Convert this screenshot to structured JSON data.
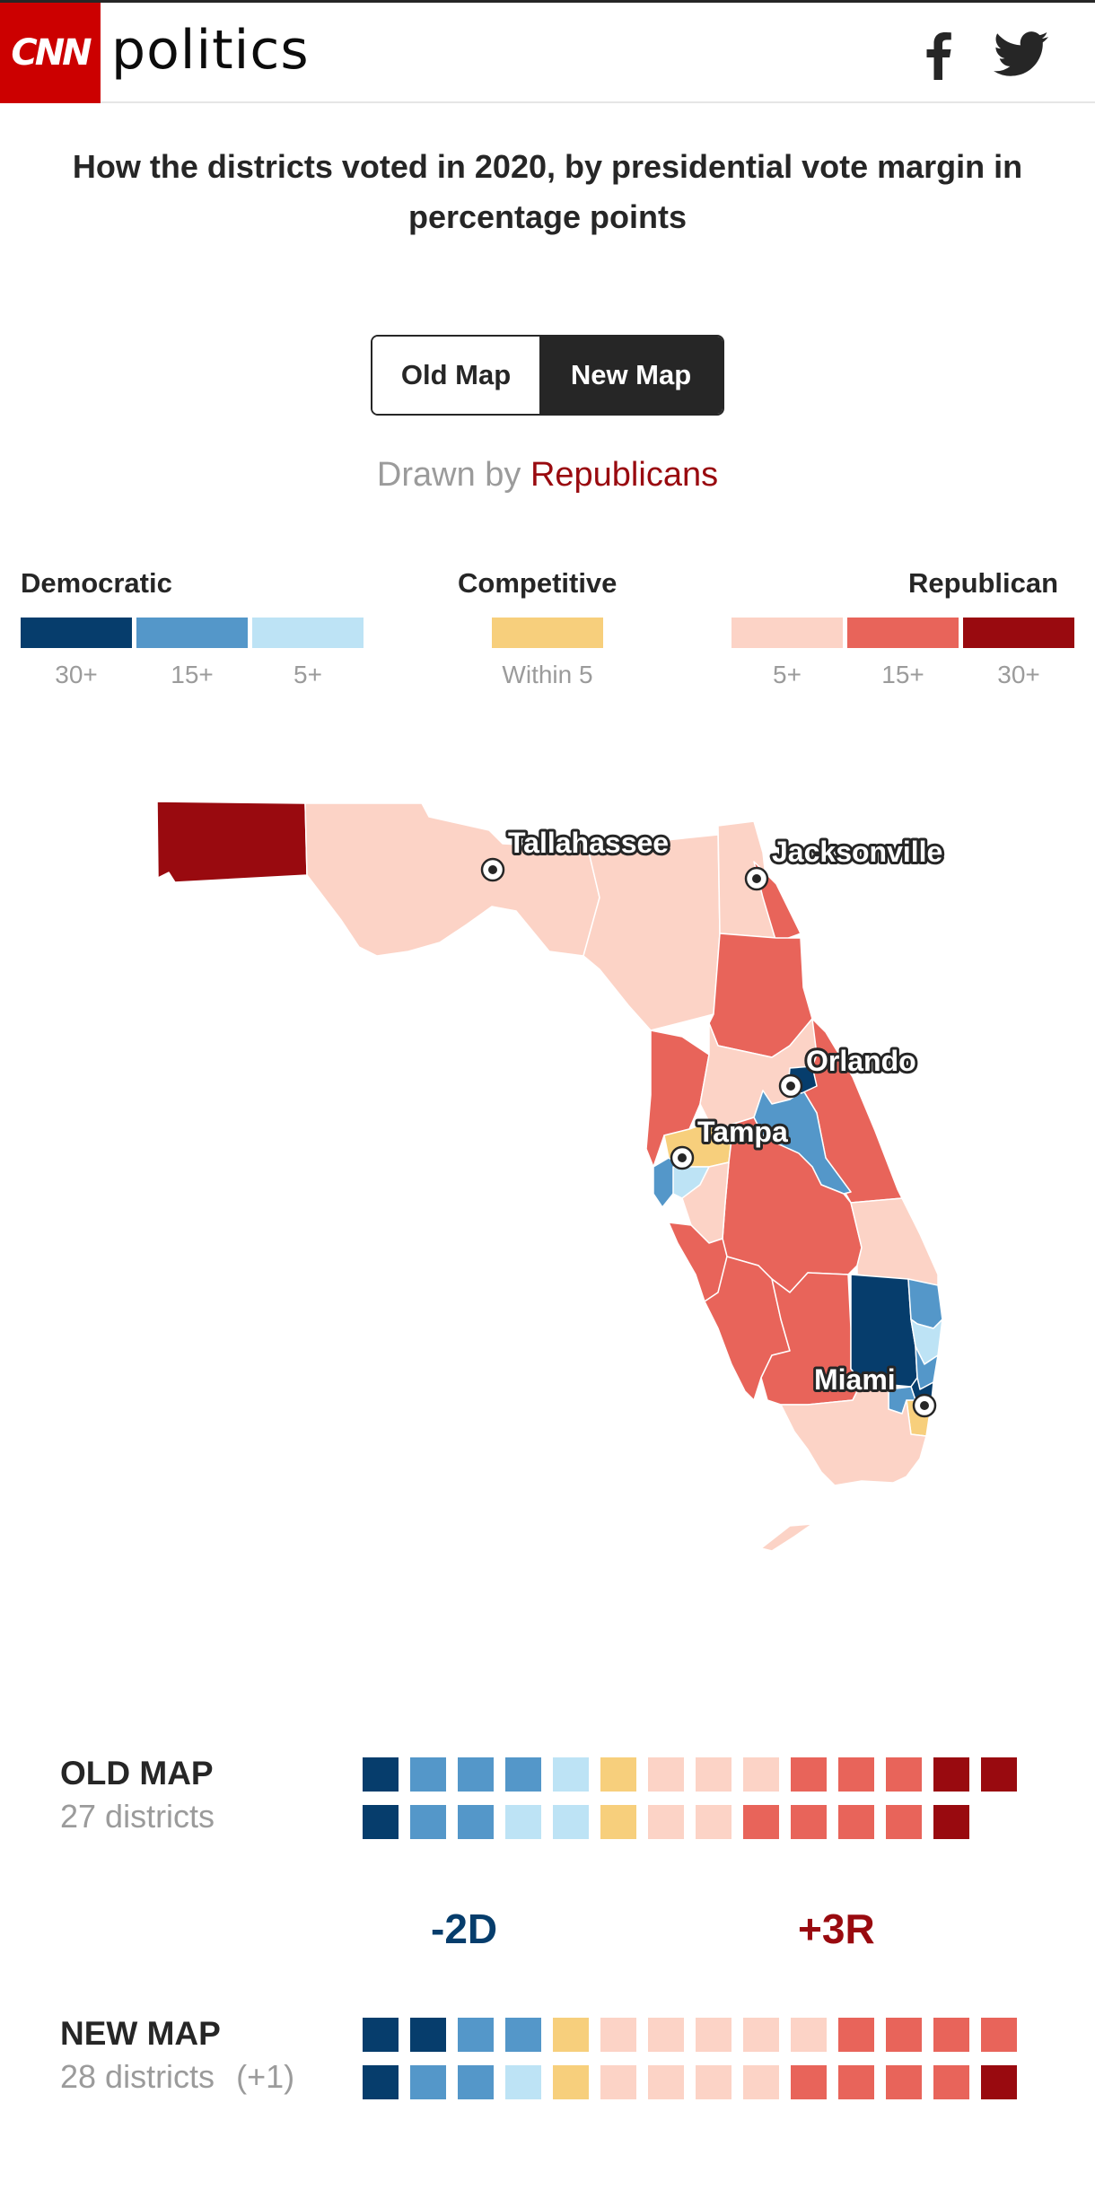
{
  "header": {
    "logo_text": "CNN",
    "brand": "politics",
    "icons": [
      "facebook-icon",
      "twitter-icon"
    ]
  },
  "title": "How the districts voted in 2020, by presidential vote margin in percentage points",
  "toggle": {
    "old_label": "Old Map",
    "new_label": "New Map",
    "selected": "New Map"
  },
  "drawn_by": {
    "prefix": "Drawn by",
    "party": "Republicans"
  },
  "legend": {
    "democratic": {
      "heading": "Democratic",
      "items": [
        {
          "label": "30+",
          "color": "#063d6c"
        },
        {
          "label": "15+",
          "color": "#5497c9"
        },
        {
          "label": "5+",
          "color": "#bde3f5"
        }
      ]
    },
    "competitive": {
      "heading": "Competitive",
      "items": [
        {
          "label": "Within 5",
          "color": "#f7cf7c"
        }
      ]
    },
    "republican": {
      "heading": "Republican",
      "items": [
        {
          "label": "5+",
          "color": "#fcd3c6"
        },
        {
          "label": "15+",
          "color": "#e8645a"
        },
        {
          "label": "30+",
          "color": "#990a0f"
        }
      ]
    }
  },
  "map": {
    "cities": [
      "Tallahassee",
      "Jacksonville",
      "Orlando",
      "Tampa",
      "Miami"
    ]
  },
  "comparison": {
    "old": {
      "heading": "OLD MAP",
      "subtitle": "27 districts",
      "rows": [
        [
          "D30",
          "D15",
          "D15",
          "D15",
          "D5",
          "C",
          "R5",
          "R5",
          "R5",
          "R15",
          "R15",
          "R15",
          "R30",
          "R30"
        ],
        [
          "D30",
          "D15",
          "D15",
          "D5",
          "D5",
          "C",
          "R5",
          "R5",
          "R15",
          "R15",
          "R15",
          "R15",
          "R30"
        ]
      ]
    },
    "delta_d": "-2D",
    "delta_r": "+3R",
    "new": {
      "heading": "NEW MAP",
      "subtitle": "28 districts",
      "change": "(+1)",
      "rows": [
        [
          "D30",
          "D30",
          "D15",
          "D15",
          "C",
          "R5",
          "R5",
          "R5",
          "R5",
          "R5",
          "R15",
          "R15",
          "R15",
          "R15"
        ],
        [
          "D30",
          "D15",
          "D15",
          "D5",
          "C",
          "R5",
          "R5",
          "R5",
          "R5",
          "R15",
          "R15",
          "R15",
          "R15",
          "R30"
        ]
      ]
    },
    "colors": {
      "D30": "#063d6c",
      "D15": "#5497c9",
      "D5": "#bde3f5",
      "C": "#f7cf7c",
      "R5": "#fcd3c6",
      "R15": "#e8645a",
      "R30": "#990a0f"
    }
  }
}
